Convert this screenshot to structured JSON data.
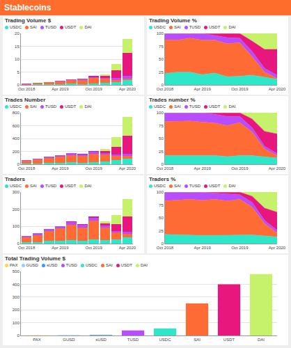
{
  "header": "Stablecoins",
  "chart_data": [
    {
      "type": "bar",
      "title": "Trading Volume $",
      "stacked": true,
      "grid": true,
      "legend": "top",
      "categories": [
        "Oct 2018",
        null,
        null,
        "Apr 2019",
        null,
        null,
        "Oct 2019",
        null,
        null,
        "Apr 2020"
      ],
      "series": [
        {
          "name": "USDC",
          "color": "#2ee6c8",
          "values": [
            0.1,
            0.2,
            0.3,
            0.3,
            0.5,
            0.4,
            0.6,
            0.8,
            1.2,
            2.0
          ]
        },
        {
          "name": "SAI",
          "color": "#ff6b35",
          "values": [
            0.3,
            0.5,
            0.8,
            1.0,
            1.4,
            1.6,
            2.2,
            1.5,
            0.8,
            0.4
          ]
        },
        {
          "name": "TUSD",
          "color": "#b84dff",
          "values": [
            0.05,
            0.1,
            0.1,
            0.2,
            0.2,
            0.3,
            0.3,
            0.4,
            0.6,
            1.0
          ]
        },
        {
          "name": "USDT",
          "color": "#e8177d",
          "values": [
            0,
            0,
            0,
            0,
            0.1,
            0.2,
            0.3,
            0.8,
            3.0,
            9.0
          ]
        },
        {
          "name": "DAI",
          "color": "#c6f26b",
          "values": [
            0,
            0,
            0,
            0,
            0,
            0,
            0,
            0.6,
            2.5,
            5.5
          ]
        }
      ],
      "ylim": [
        0,
        20
      ],
      "yticks": [
        0,
        5,
        10,
        15,
        20
      ]
    },
    {
      "type": "area",
      "title": "Trading Volume %",
      "stacked": true,
      "grid": true,
      "legend": "top",
      "categories": [
        "Oct 2018",
        null,
        null,
        "Apr 2019",
        null,
        null,
        "Oct 2019",
        null,
        null,
        "Apr 2020"
      ],
      "series": [
        {
          "name": "USDC",
          "color": "#2ee6c8",
          "values": [
            22,
            25,
            25,
            20,
            23,
            16,
            17,
            19,
            15,
            11
          ]
        },
        {
          "name": "SAI",
          "color": "#ff6b35",
          "values": [
            66,
            62,
            66,
            67,
            64,
            64,
            65,
            36,
            10,
            2
          ]
        },
        {
          "name": "TUSD",
          "color": "#b84dff",
          "values": [
            12,
            13,
            9,
            13,
            9,
            12,
            9,
            10,
            7,
            6
          ]
        },
        {
          "name": "USDT",
          "color": "#e8177d",
          "values": [
            0,
            0,
            0,
            0,
            4,
            8,
            9,
            20,
            37,
            50
          ]
        },
        {
          "name": "DAI",
          "color": "#c6f26b",
          "values": [
            0,
            0,
            0,
            0,
            0,
            0,
            0,
            15,
            31,
            31
          ]
        }
      ],
      "ylim": [
        0,
        100
      ],
      "yticks": [
        0,
        25,
        50,
        75,
        100
      ]
    },
    {
      "type": "bar",
      "title": "Trades Number",
      "stacked": true,
      "grid": true,
      "legend": "top",
      "categories": [
        "Oct 2018",
        null,
        null,
        "Apr 2019",
        null,
        null,
        "Oct 2019",
        null,
        null,
        "Apr 2020"
      ],
      "series": [
        {
          "name": "USDC",
          "color": "#2ee6c8",
          "values": [
            10,
            15,
            20,
            25,
            30,
            25,
            35,
            40,
            60,
            90
          ]
        },
        {
          "name": "SAI",
          "color": "#ff6b35",
          "values": [
            40,
            60,
            80,
            90,
            110,
            100,
            130,
            110,
            70,
            40
          ]
        },
        {
          "name": "TUSD",
          "color": "#b84dff",
          "values": [
            10,
            15,
            20,
            25,
            30,
            30,
            25,
            20,
            20,
            30
          ]
        },
        {
          "name": "USDT",
          "color": "#e8177d",
          "values": [
            0,
            0,
            0,
            0,
            5,
            10,
            15,
            40,
            120,
            280
          ]
        },
        {
          "name": "DAI",
          "color": "#c6f26b",
          "values": [
            0,
            0,
            0,
            0,
            0,
            0,
            0,
            30,
            150,
            300
          ]
        }
      ],
      "ylim": [
        0,
        800
      ],
      "yticks": [
        0,
        200,
        400,
        600,
        800
      ]
    },
    {
      "type": "area",
      "title": "Trades number %",
      "stacked": true,
      "grid": true,
      "legend": "top",
      "categories": [
        "Oct 2018",
        null,
        null,
        "Apr 2019",
        null,
        null,
        "Oct 2019",
        null,
        null,
        "Apr 2020"
      ],
      "series": [
        {
          "name": "USDC",
          "color": "#2ee6c8",
          "values": [
            17,
            17,
            17,
            18,
            17,
            15,
            17,
            17,
            14,
            12
          ]
        },
        {
          "name": "SAI",
          "color": "#ff6b35",
          "values": [
            66,
            67,
            67,
            64,
            63,
            60,
            64,
            46,
            16,
            5
          ]
        },
        {
          "name": "TUSD",
          "color": "#b84dff",
          "values": [
            17,
            16,
            16,
            18,
            17,
            18,
            12,
            8,
            5,
            4
          ]
        },
        {
          "name": "USDT",
          "color": "#e8177d",
          "values": [
            0,
            0,
            0,
            0,
            3,
            7,
            7,
            17,
            29,
            38
          ]
        },
        {
          "name": "DAI",
          "color": "#c6f26b",
          "values": [
            0,
            0,
            0,
            0,
            0,
            0,
            0,
            12,
            36,
            41
          ]
        }
      ],
      "ylim": [
        0,
        100
      ],
      "yticks": [
        0,
        25,
        50,
        75,
        100
      ]
    },
    {
      "type": "bar",
      "title": "Traders",
      "stacked": true,
      "grid": true,
      "legend": "top",
      "categories": [
        "Oct 2018",
        null,
        null,
        "Apr 2019",
        null,
        null,
        "Oct 2019",
        null,
        null,
        "Apr 2020"
      ],
      "series": [
        {
          "name": "USDC",
          "color": "#2ee6c8",
          "values": [
            8,
            10,
            15,
            18,
            20,
            18,
            25,
            22,
            25,
            35
          ]
        },
        {
          "name": "SAI",
          "color": "#ff6b35",
          "values": [
            30,
            40,
            60,
            70,
            90,
            75,
            110,
            70,
            40,
            20
          ]
        },
        {
          "name": "TUSD",
          "color": "#b84dff",
          "values": [
            8,
            10,
            12,
            15,
            15,
            15,
            15,
            12,
            10,
            15
          ]
        },
        {
          "name": "USDT",
          "color": "#e8177d",
          "values": [
            0,
            0,
            0,
            0,
            3,
            5,
            8,
            15,
            40,
            90
          ]
        },
        {
          "name": "DAI",
          "color": "#c6f26b",
          "values": [
            0,
            0,
            0,
            0,
            0,
            0,
            0,
            10,
            50,
            100
          ]
        }
      ],
      "ylim": [
        0,
        300
      ],
      "yticks": [
        0,
        100,
        200,
        300
      ]
    },
    {
      "type": "area",
      "title": "Traders %",
      "stacked": true,
      "grid": true,
      "legend": "top",
      "categories": [
        "Oct 2018",
        null,
        null,
        "Apr 2019",
        null,
        null,
        "Oct 2019",
        null,
        null,
        "Apr 2020"
      ],
      "series": [
        {
          "name": "USDC",
          "color": "#2ee6c8",
          "values": [
            18,
            17,
            17,
            16,
            16,
            16,
            16,
            17,
            15,
            13
          ]
        },
        {
          "name": "SAI",
          "color": "#ff6b35",
          "values": [
            65,
            67,
            69,
            68,
            70,
            67,
            70,
            54,
            24,
            8
          ]
        },
        {
          "name": "TUSD",
          "color": "#b84dff",
          "values": [
            17,
            16,
            14,
            16,
            12,
            13,
            9,
            9,
            6,
            5
          ]
        },
        {
          "name": "USDT",
          "color": "#e8177d",
          "values": [
            0,
            0,
            0,
            0,
            2,
            4,
            5,
            12,
            24,
            35
          ]
        },
        {
          "name": "DAI",
          "color": "#c6f26b",
          "values": [
            0,
            0,
            0,
            0,
            0,
            0,
            0,
            8,
            31,
            39
          ]
        }
      ],
      "ylim": [
        0,
        100
      ],
      "yticks": [
        0,
        25,
        50,
        75,
        100
      ]
    },
    {
      "type": "bar",
      "title": "Total Trading Volume $",
      "grid": true,
      "legend": "top",
      "categories": [
        "PAX",
        "GUSD",
        "sUSD",
        "TUSD",
        "USDC",
        "SAI",
        "USDT",
        "DAI"
      ],
      "values": [
        1,
        3,
        4,
        40,
        55,
        250,
        400,
        480
      ],
      "colors": [
        "#ffd84d",
        "#8fd0ff",
        "#2d9cff",
        "#b84dff",
        "#2ee6c8",
        "#ff6b35",
        "#e8177d",
        "#c6f26b"
      ],
      "ylim": [
        0,
        500
      ],
      "yticks": [
        0,
        100,
        200,
        300,
        400,
        500
      ]
    }
  ]
}
